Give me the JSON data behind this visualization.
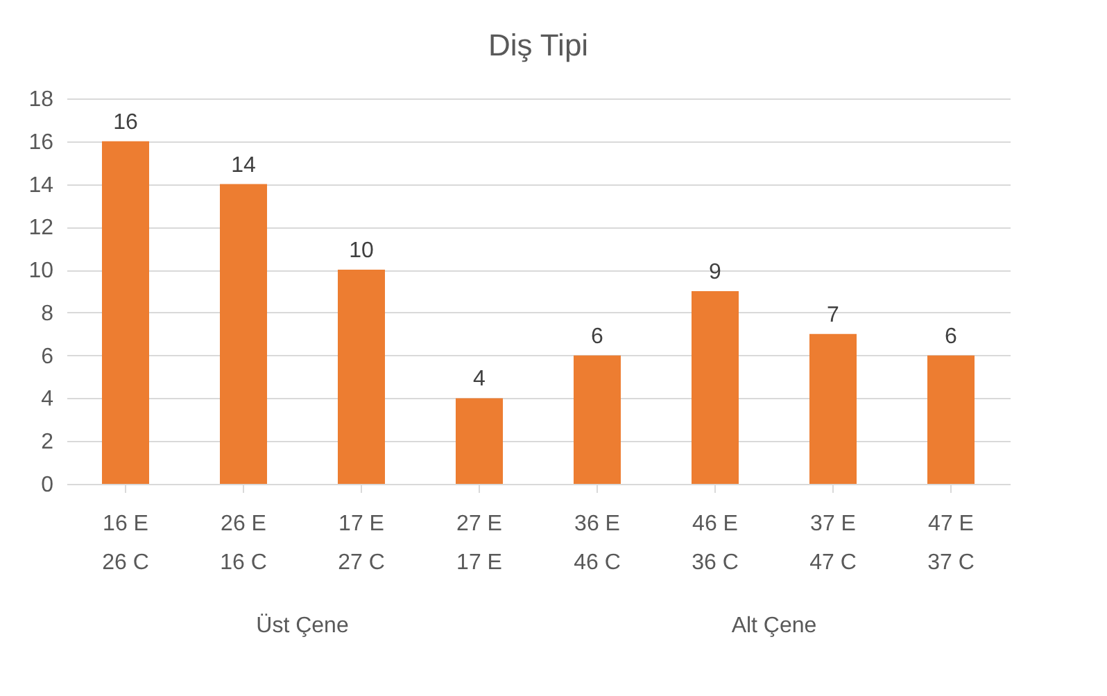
{
  "chart_data": {
    "type": "bar",
    "title": "Diş Tipi",
    "categories": [
      "16 E\n26 C",
      "26 E\n16 C",
      "17 E\n27 C",
      "27 E\n17 E",
      "36 E\n46 C",
      "46 E\n36 C",
      "37 E\n47 C",
      "47 E\n37 C"
    ],
    "values": [
      16,
      14,
      10,
      4,
      6,
      9,
      7,
      6
    ],
    "color": "#ed7d31",
    "ylim": [
      0,
      18
    ],
    "yticks": [
      0,
      2,
      4,
      6,
      8,
      10,
      12,
      14,
      16,
      18
    ],
    "grid": "y",
    "data_labels": true,
    "annotations": [
      "Üst Çene",
      "Alt Çene"
    ]
  }
}
